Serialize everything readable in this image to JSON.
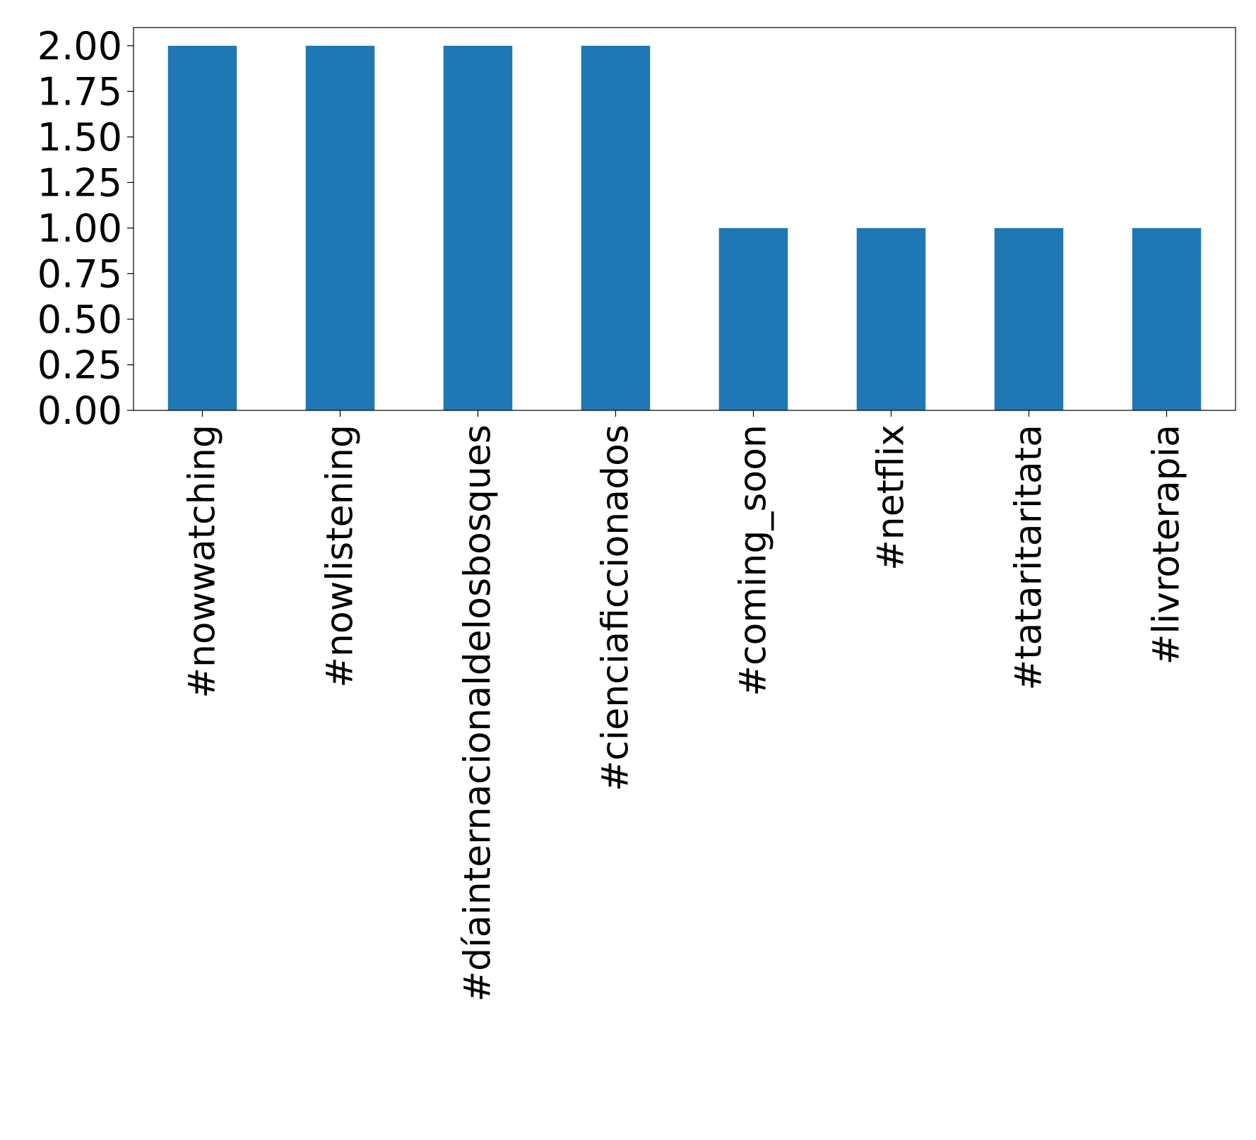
{
  "chart_data": {
    "type": "bar",
    "title": "",
    "xlabel": "",
    "ylabel": "",
    "categories": [
      "#nowwatching",
      "#nowlistening",
      "#díainternacionaldelosbosques",
      "#cienciaficcionados",
      "#coming_soon",
      "#netflix",
      "#tataritaritata",
      "#livroterapia"
    ],
    "values": [
      2,
      2,
      2,
      2,
      1,
      1,
      1,
      1
    ],
    "ylim": [
      0,
      2.1
    ],
    "yticks": [
      0,
      0.25,
      0.5,
      0.75,
      1.0,
      1.25,
      1.5,
      1.75,
      2.0
    ],
    "ytick_labels": [
      "0.00",
      "0.25",
      "0.50",
      "0.75",
      "1.00",
      "1.25",
      "1.50",
      "1.75",
      "2.00"
    ],
    "bar_color": "#1f77b4",
    "grid": false,
    "legend": "none",
    "x_tick_rotation": "vertical"
  }
}
